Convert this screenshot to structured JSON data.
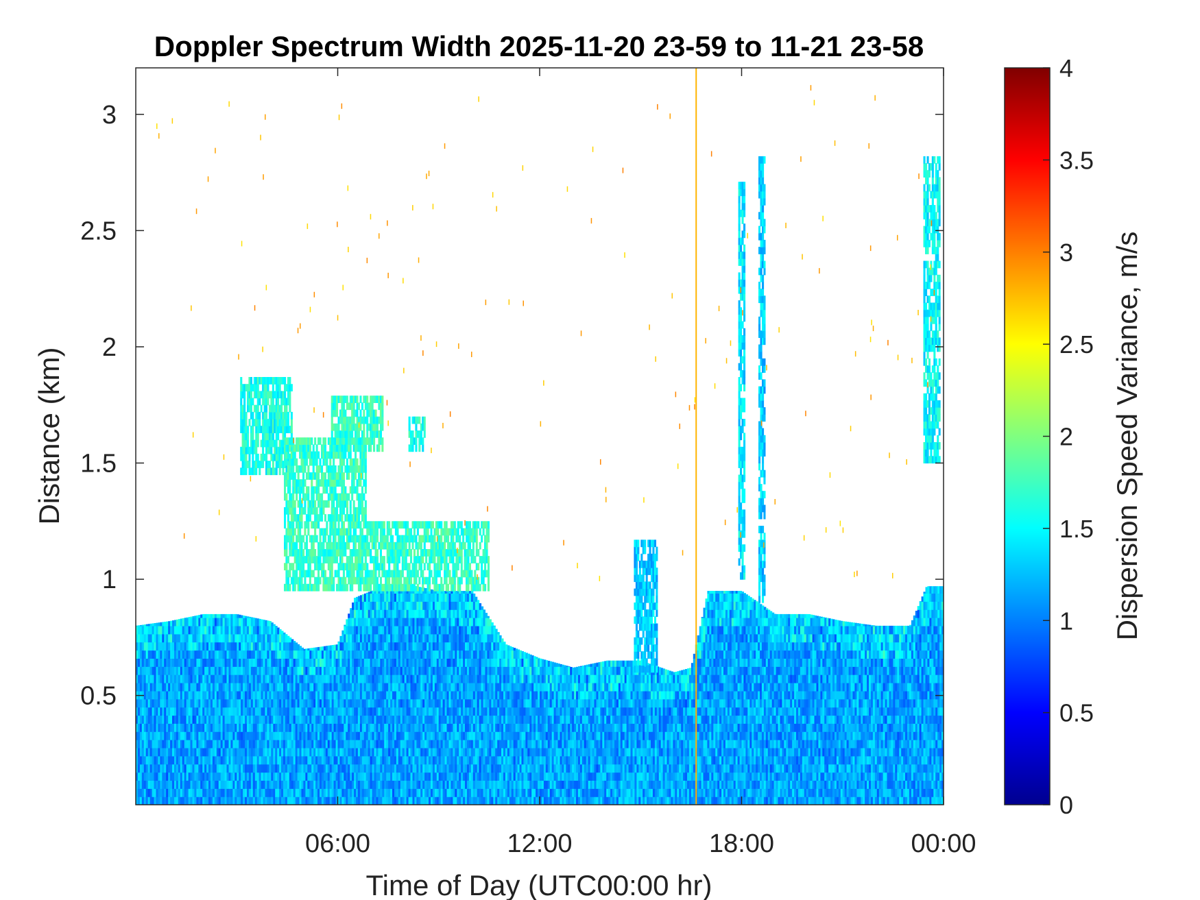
{
  "chart_data": {
    "type": "heatmap",
    "title": "Doppler Spectrum Width 2025-11-20 23-59 to 11-21 23-58",
    "xlabel": "Time of Day (UTC00:00 hr)",
    "ylabel": "Distance (km)",
    "xlim": [
      0,
      24
    ],
    "ylim": [
      0.03,
      3.2
    ],
    "x_ticks": [
      {
        "value": 6,
        "label": "06:00"
      },
      {
        "value": 12,
        "label": "12:00"
      },
      {
        "value": 18,
        "label": "18:00"
      },
      {
        "value": 24,
        "label": "00:00"
      }
    ],
    "y_ticks": [
      {
        "value": 0.5,
        "label": "0.5"
      },
      {
        "value": 1,
        "label": "1"
      },
      {
        "value": 1.5,
        "label": "1.5"
      },
      {
        "value": 2,
        "label": "2"
      },
      {
        "value": 2.5,
        "label": "2.5"
      },
      {
        "value": 3,
        "label": "3"
      }
    ],
    "colorbar": {
      "label": "Dispersion Speed Variance, m/s",
      "range": [
        0,
        4
      ],
      "colormap": "jet",
      "ticks": [
        {
          "value": 0,
          "label": "0"
        },
        {
          "value": 0.5,
          "label": "0.5"
        },
        {
          "value": 1,
          "label": "1"
        },
        {
          "value": 1.5,
          "label": "1.5"
        },
        {
          "value": 2,
          "label": "2"
        },
        {
          "value": 2.5,
          "label": "2.5"
        },
        {
          "value": 3,
          "label": "3"
        },
        {
          "value": 3.5,
          "label": "3.5"
        },
        {
          "value": 4,
          "label": "4"
        }
      ]
    },
    "grid": false,
    "boundary_layer_top_km": [
      [
        0,
        0.8
      ],
      [
        1,
        0.82
      ],
      [
        2,
        0.85
      ],
      [
        3,
        0.85
      ],
      [
        4,
        0.82
      ],
      [
        5,
        0.7
      ],
      [
        6,
        0.72
      ],
      [
        6.5,
        0.92
      ],
      [
        7,
        0.95
      ],
      [
        8,
        0.98
      ],
      [
        9,
        0.95
      ],
      [
        10,
        0.95
      ],
      [
        11,
        0.72
      ],
      [
        12,
        0.66
      ],
      [
        13,
        0.62
      ],
      [
        14,
        0.65
      ],
      [
        15,
        0.65
      ],
      [
        16,
        0.6
      ],
      [
        16.5,
        0.62
      ],
      [
        17,
        0.95
      ],
      [
        18,
        0.95
      ],
      [
        19,
        0.85
      ],
      [
        20,
        0.85
      ],
      [
        21,
        0.82
      ],
      [
        22,
        0.8
      ],
      [
        23,
        0.8
      ],
      [
        23.5,
        0.97
      ],
      [
        24,
        0.97
      ]
    ],
    "elevated_layers": [
      {
        "t_start": 3.1,
        "t_end": 4.6,
        "z_low": 1.45,
        "z_high": 1.85,
        "value": 1.6
      },
      {
        "t_start": 4.4,
        "t_end": 6.8,
        "z_low": 0.95,
        "z_high": 1.6,
        "value": 1.7
      },
      {
        "t_start": 5.8,
        "t_end": 7.3,
        "z_low": 1.55,
        "z_high": 1.78,
        "value": 1.7
      },
      {
        "t_start": 8.1,
        "t_end": 8.6,
        "z_low": 1.55,
        "z_high": 1.7,
        "value": 1.6
      },
      {
        "t_start": 6.8,
        "t_end": 10.5,
        "z_low": 0.95,
        "z_high": 1.25,
        "value": 1.7
      },
      {
        "t_start": 14.8,
        "t_end": 15.5,
        "z_low": 0.6,
        "z_high": 1.15,
        "value": 1.3
      },
      {
        "t_start": 17.9,
        "t_end": 18.1,
        "z_low": 1.0,
        "z_high": 2.7,
        "value": 1.4
      },
      {
        "t_start": 18.5,
        "t_end": 18.7,
        "z_low": 0.9,
        "z_high": 2.8,
        "value": 1.3
      },
      {
        "t_start": 23.4,
        "t_end": 23.9,
        "z_low": 1.5,
        "z_high": 2.8,
        "value": 1.5
      }
    ],
    "vertical_line_time": 16.65
  }
}
